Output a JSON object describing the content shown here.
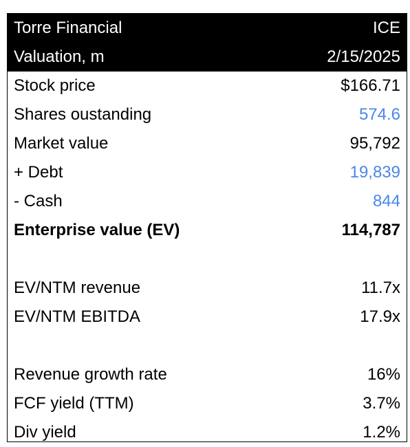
{
  "header": {
    "company": "Torre Financial",
    "ticker": "ICE",
    "subtitle": "Valuation, m",
    "date": "2/15/2025"
  },
  "colors": {
    "header_bg": "#000000",
    "header_text": "#ffffff",
    "input_blue": "#4a86e8"
  },
  "valuation": [
    {
      "label": "Stock price",
      "value": "$166.71"
    },
    {
      "label": "Shares oustanding",
      "value": "574.6"
    },
    {
      "label": "Market value",
      "value": "95,792"
    },
    {
      "label": "+ Debt",
      "value": "19,839"
    },
    {
      "label": "- Cash",
      "value": "844"
    },
    {
      "label": "Enterprise value (EV)",
      "value": "114,787"
    }
  ],
  "multiples": [
    {
      "label": "EV/NTM revenue",
      "value": "11.7x"
    },
    {
      "label": "EV/NTM EBITDA",
      "value": "17.9x"
    }
  ],
  "metrics": [
    {
      "label": "Revenue growth rate",
      "value": "16%"
    },
    {
      "label": "FCF yield (TTM)",
      "value": "3.7%"
    },
    {
      "label": "Div yield",
      "value": "1.2%"
    }
  ]
}
